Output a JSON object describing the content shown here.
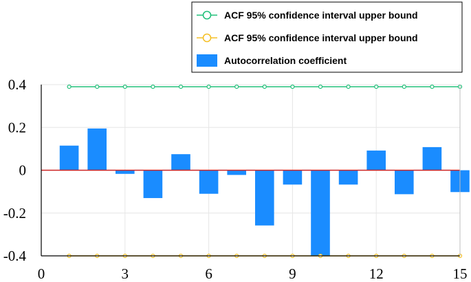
{
  "chart_data": {
    "type": "bar",
    "title": "",
    "xlabel": "",
    "ylabel": "",
    "xlim": [
      0,
      15
    ],
    "ylim": [
      -0.4,
      0.4
    ],
    "x_ticks": [
      "0",
      "3",
      "6",
      "9",
      "12",
      "15"
    ],
    "y_ticks": [
      "0.4",
      "0.2",
      "0",
      "-0.2",
      "-0.4"
    ],
    "grid": true,
    "legend_position": "top-right",
    "series": [
      {
        "name": "ACF 95% confidence interval upper bound",
        "type": "line",
        "color": "#22c07a",
        "x": [
          1,
          2,
          3,
          4,
          5,
          6,
          7,
          8,
          9,
          10,
          11,
          12,
          13,
          14,
          15
        ],
        "values": [
          0.39,
          0.39,
          0.39,
          0.39,
          0.39,
          0.39,
          0.39,
          0.39,
          0.39,
          0.39,
          0.39,
          0.39,
          0.39,
          0.39,
          0.39
        ]
      },
      {
        "name": "ACF 95% confidence interval upper bound",
        "type": "line",
        "color": "#f5c027",
        "x": [
          1,
          2,
          3,
          4,
          5,
          6,
          7,
          8,
          9,
          10,
          11,
          12,
          13,
          14,
          15
        ],
        "values": [
          -0.4,
          -0.4,
          -0.4,
          -0.4,
          -0.4,
          -0.4,
          -0.4,
          -0.4,
          -0.4,
          -0.4,
          -0.4,
          -0.4,
          -0.4,
          -0.4,
          -0.4
        ]
      },
      {
        "name": "Autocorrelation coefficient",
        "type": "bar",
        "color": "#1a8cff",
        "x": [
          1,
          2,
          3,
          4,
          5,
          6,
          7,
          8,
          9,
          10,
          11,
          12,
          13,
          14,
          15
        ],
        "values": [
          0.115,
          0.195,
          -0.017,
          -0.13,
          0.075,
          -0.11,
          -0.022,
          -0.258,
          -0.067,
          -0.4,
          -0.067,
          0.092,
          -0.112,
          0.108,
          -0.102
        ]
      }
    ],
    "zero_line_color": "#cc2222"
  }
}
